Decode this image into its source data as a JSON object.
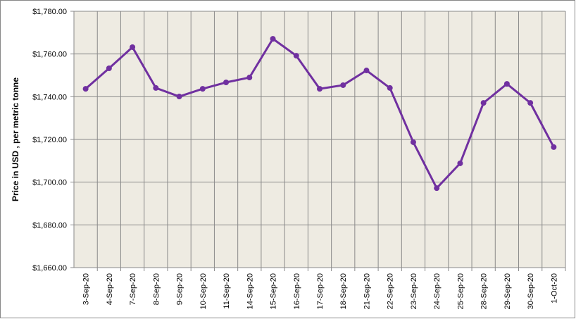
{
  "chart_data": {
    "type": "line",
    "y_label": "Price in USD , per metric tonne",
    "categories": [
      "3-Sep-20",
      "4-Sep-20",
      "7-Sep-20",
      "8-Sep-20",
      "9-Sep-20",
      "10-Sep-20",
      "11-Sep-20",
      "14-Sep-20",
      "15-Sep-20",
      "16-Sep-20",
      "17-Sep-20",
      "18-Sep-20",
      "21-Sep-20",
      "22-Sep-20",
      "23-Sep-20",
      "24-Sep-20",
      "25-Sep-20",
      "28-Sep-20",
      "29-Sep-20",
      "30-Sep-20",
      "1-Oct-20"
    ],
    "series": [
      {
        "color": "#7030a0",
        "values": [
          1743.7,
          1753.3,
          1763.2,
          1744.1,
          1740.1,
          1743.7,
          1746.7,
          1749.0,
          1767.1,
          1759.2,
          1743.7,
          1745.4,
          1752.3,
          1744.1,
          1718.7,
          1697.2,
          1708.8,
          1737.1,
          1746.0,
          1737.1,
          1716.4
        ]
      }
    ],
    "ylim": [
      1660,
      1780
    ],
    "yticks": [
      {
        "value": 1660,
        "label": "$1,660.00"
      },
      {
        "value": 1680,
        "label": "$1,680.00"
      },
      {
        "value": 1700,
        "label": "$1,700.00"
      },
      {
        "value": 1720,
        "label": "$1,720.00"
      },
      {
        "value": 1740,
        "label": "$1,740.00"
      },
      {
        "value": 1760,
        "label": "$1,760.00"
      },
      {
        "value": 1780,
        "label": "$1,780.00"
      }
    ],
    "grid": true
  }
}
